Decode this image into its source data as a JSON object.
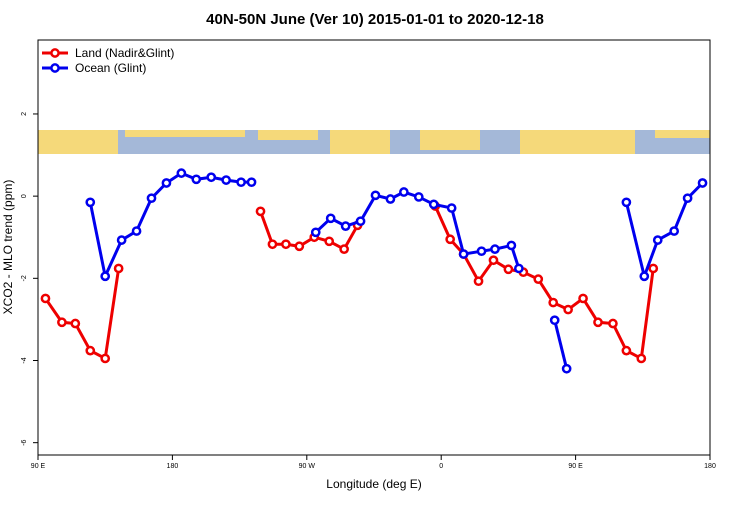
{
  "chart_data": {
    "type": "line",
    "title": "40N-50N June (Ver 10)   2015-01-01 to 2020-12-18",
    "x_label": "Longitude (deg E)",
    "y_label": "XCO2 - MLO trend (ppm)",
    "xlim": [
      90,
      540
    ],
    "ylim": [
      -6.3,
      3.8
    ],
    "xticks": [
      {
        "value": 90,
        "label": "90 E"
      },
      180,
      {
        "value": 270,
        "label": "90 W"
      },
      {
        "value": 360,
        "label": "0"
      },
      {
        "value": 450,
        "label": "90 E"
      },
      {
        "value": 540,
        "label": "180"
      }
    ],
    "yticks": [
      2,
      0,
      -2,
      -4,
      -6
    ],
    "legend": "top-left",
    "series": [
      {
        "name": "Land (Nadir&Glint)",
        "color": "#ee0000",
        "x": [
          95,
          106,
          115,
          125,
          135,
          144,
          null,
          239,
          247,
          256,
          265,
          275,
          285,
          295,
          304,
          null,
          356,
          366,
          375,
          385,
          395,
          405,
          415,
          425,
          435,
          445,
          455,
          465,
          475,
          484,
          494,
          502
        ],
        "values": [
          -2.49,
          -3.07,
          -3.1,
          -3.76,
          -3.95,
          -1.76,
          null,
          -0.37,
          -1.17,
          -1.17,
          -1.22,
          -1.0,
          -1.1,
          -1.29,
          -0.71,
          null,
          -0.24,
          -1.05,
          -1.41,
          -2.07,
          -1.56,
          -1.78,
          -1.85,
          -2.02,
          -2.59,
          -2.76,
          -2.49,
          -3.07,
          -3.1,
          -3.76,
          -3.95,
          -1.76
        ]
      },
      {
        "name": "Ocean (Glint)",
        "color": "#0000ee",
        "x": [
          125,
          135,
          146,
          156,
          166,
          176,
          186,
          196,
          206,
          216,
          226,
          233,
          null,
          276,
          286,
          296,
          306,
          316,
          326,
          335,
          345,
          355,
          367,
          375,
          387,
          396,
          407,
          412,
          null,
          436,
          444,
          null,
          484,
          496,
          505,
          516,
          525,
          535
        ],
        "values": [
          -0.15,
          -1.95,
          -1.07,
          -0.85,
          -0.05,
          0.32,
          0.56,
          0.41,
          0.46,
          0.39,
          0.34,
          0.34,
          null,
          -0.88,
          -0.54,
          -0.73,
          -0.61,
          0.02,
          -0.07,
          0.1,
          -0.02,
          -0.2,
          -0.29,
          -1.41,
          -1.34,
          -1.29,
          -1.2,
          -1.76,
          null,
          -3.02,
          -4.2,
          null,
          -0.15,
          -1.95,
          -1.07,
          -0.85,
          -0.05,
          0.32
        ]
      }
    ]
  }
}
